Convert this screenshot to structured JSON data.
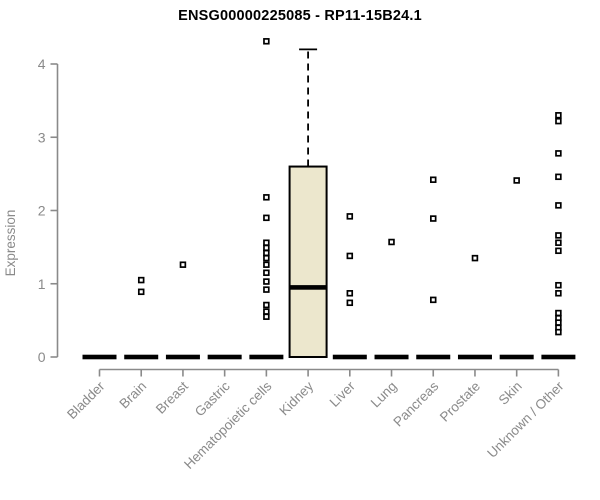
{
  "title": "ENSG00000225085 - RP11-15B24.1",
  "chart_data": {
    "type": "boxplot",
    "title": "ENSG00000225085 - RP11-15B24.1",
    "xlabel": "",
    "ylabel": "Expression",
    "ylim": [
      0,
      4
    ],
    "yticks": [
      0,
      1,
      2,
      3,
      4
    ],
    "grid": false,
    "legend": false,
    "categories": [
      "Bladder",
      "Brain",
      "Breast",
      "Gastric",
      "Hematopoietic cells",
      "Kidney",
      "Liver",
      "Lung",
      "Pancreas",
      "Prostate",
      "Skin",
      "Unknown / Other"
    ],
    "boxes": [
      {
        "category": "Bladder",
        "q1": 0,
        "median": 0,
        "q3": 0,
        "whisker_low": 0,
        "whisker_high": 0,
        "outliers": []
      },
      {
        "category": "Brain",
        "q1": 0,
        "median": 0,
        "q3": 0,
        "whisker_low": 0,
        "whisker_high": 0,
        "outliers": [
          1.05,
          0.89
        ]
      },
      {
        "category": "Breast",
        "q1": 0,
        "median": 0,
        "q3": 0,
        "whisker_low": 0,
        "whisker_high": 0,
        "outliers": [
          1.26
        ]
      },
      {
        "category": "Gastric",
        "q1": 0,
        "median": 0,
        "q3": 0,
        "whisker_low": 0,
        "whisker_high": 0,
        "outliers": []
      },
      {
        "category": "Hematopoietic cells",
        "q1": 0,
        "median": 0,
        "q3": 0,
        "whisker_low": 0,
        "whisker_high": 0,
        "outliers": [
          4.31,
          2.18,
          1.9,
          1.56,
          1.49,
          1.42,
          1.35,
          1.26,
          1.15,
          1.03,
          0.92,
          0.71,
          0.62,
          0.55
        ]
      },
      {
        "category": "Kidney",
        "q1": 0,
        "median": 0.95,
        "q3": 2.6,
        "whisker_low": 0,
        "whisker_high": 4.2,
        "outliers": []
      },
      {
        "category": "Liver",
        "q1": 0,
        "median": 0,
        "q3": 0,
        "whisker_low": 0,
        "whisker_high": 0,
        "outliers": [
          1.92,
          1.38,
          0.87,
          0.74
        ]
      },
      {
        "category": "Lung",
        "q1": 0,
        "median": 0,
        "q3": 0,
        "whisker_low": 0,
        "whisker_high": 0,
        "outliers": [
          1.57
        ]
      },
      {
        "category": "Pancreas",
        "q1": 0,
        "median": 0,
        "q3": 0,
        "whisker_low": 0,
        "whisker_high": 0,
        "outliers": [
          2.42,
          1.89,
          0.78
        ]
      },
      {
        "category": "Prostate",
        "q1": 0,
        "median": 0,
        "q3": 0,
        "whisker_low": 0,
        "whisker_high": 0,
        "outliers": [
          1.35
        ]
      },
      {
        "category": "Skin",
        "q1": 0,
        "median": 0,
        "q3": 0,
        "whisker_low": 0,
        "whisker_high": 0,
        "outliers": [
          2.41
        ]
      },
      {
        "category": "Unknown / Other",
        "q1": 0,
        "median": 0,
        "q3": 0,
        "whisker_low": 0,
        "whisker_high": 0,
        "outliers": [
          3.3,
          3.22,
          2.78,
          2.46,
          2.07,
          1.66,
          1.56,
          1.45,
          0.98,
          0.87,
          0.6,
          0.53,
          0.47,
          0.4,
          0.34
        ]
      }
    ],
    "colors": {
      "box_fill": "#ece7cd",
      "box_stroke": "#000000",
      "median": "#000000",
      "whisker": "#000000",
      "zero_bar": "#000000",
      "outlier_stroke": "#000000",
      "outlier_fill": "#ffffff",
      "axis": "#8a8a8a",
      "title": "#000000",
      "background": "#ffffff"
    }
  }
}
